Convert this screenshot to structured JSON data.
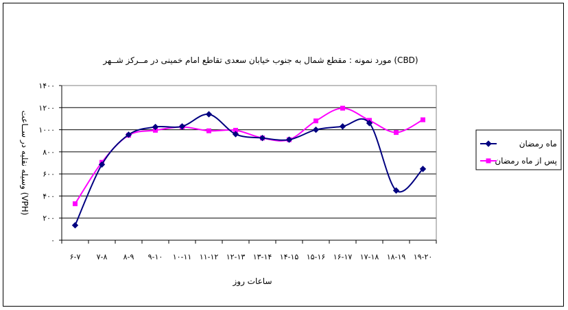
{
  "chart_data": {
    "type": "line",
    "title": "مورد نمونه : مقطع شمال به جنوب خیابان سعدی تقاطع امام خمینی در مــرکز شــهر (CBD)",
    "xlabel": "ساعات روز",
    "ylabel": "وسیله نقلیه در ســاعت (VPH)",
    "ylim": [
      0,
      1400
    ],
    "yticks": [
      0,
      200,
      400,
      600,
      800,
      1000,
      1200,
      1400
    ],
    "ytick_labels": [
      "۰",
      "۲۰۰",
      "۴۰۰",
      "۶۰۰",
      "۸۰۰",
      "۱۰۰۰",
      "۱۲۰۰",
      "۱۴۰۰"
    ],
    "categories": [
      "۶-۷",
      "۷-۸",
      "۸-۹",
      "۹-۱۰",
      "۱۰-۱۱",
      "۱۱-۱۲",
      "۱۲-۱۳",
      "۱۳-۱۴",
      "۱۴-۱۵",
      "۱۵-۱۶",
      "۱۶-۱۷",
      "۱۷-۱۸",
      "۱۸-۱۹",
      "۱۹-۲۰"
    ],
    "grid": true,
    "legend_position": "right",
    "series": [
      {
        "name": "ماه رمضان",
        "color": "#000080",
        "marker": "diamond",
        "values": [
          135,
          685,
          955,
          1025,
          1030,
          1140,
          960,
          925,
          910,
          1000,
          1030,
          1060,
          450,
          645
        ]
      },
      {
        "name": "پس از ماه رمضان",
        "color": "#ff00ff",
        "marker": "square",
        "values": [
          330,
          705,
          950,
          995,
          1025,
          990,
          995,
          925,
          910,
          1080,
          1195,
          1085,
          975,
          1090
        ]
      }
    ]
  }
}
